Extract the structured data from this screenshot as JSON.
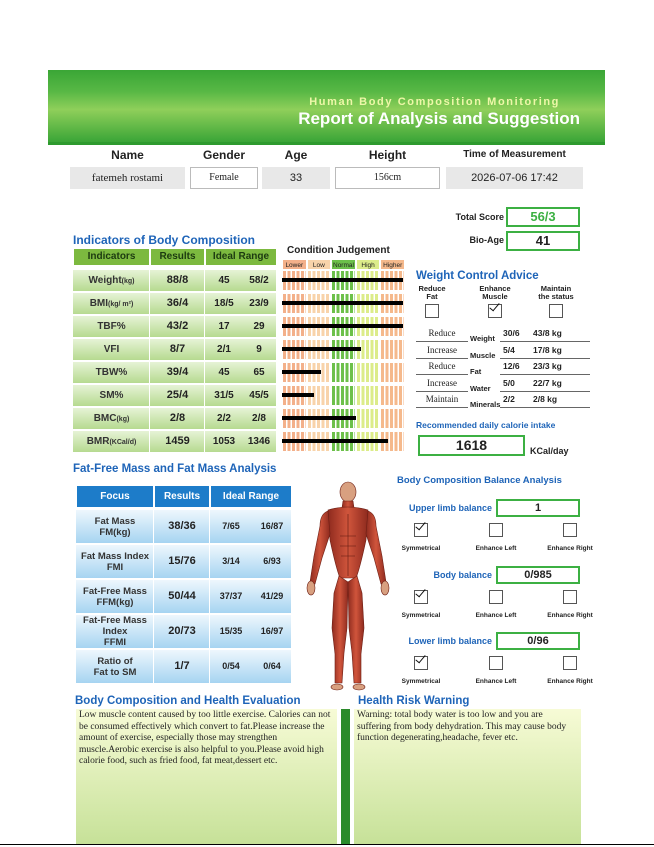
{
  "header": {
    "subtitle": "Human Body Composition Monitoring",
    "title": "Report of Analysis and Suggestion"
  },
  "info": {
    "columns": [
      "Name",
      "Gender",
      "Age",
      "Height",
      "Time of Measurement"
    ],
    "values": [
      "fatemeh rostami",
      "Female",
      "33",
      "156cm",
      "2026-07-06  17:42"
    ]
  },
  "score": {
    "total_label": "Total Score",
    "total": "56/3",
    "bio_age_label": "Bio-Age",
    "bio_age": "41"
  },
  "indicators": {
    "title": "Indicators of Body Composition",
    "columns": [
      "Indicators",
      "Results",
      "Ideal Range"
    ],
    "rows": [
      {
        "name": "Weight",
        "unit": "(kg)",
        "result": "88/8",
        "min": "45",
        "max": "58/2"
      },
      {
        "name": "BMI",
        "unit": "(kg/ m²)",
        "result": "36/4",
        "min": "18/5",
        "max": "23/9"
      },
      {
        "name": "TBF%",
        "result": "43/2",
        "min": "17",
        "max": "29"
      },
      {
        "name": "VFI",
        "result": "8/7",
        "min": "2/1",
        "max": "9"
      },
      {
        "name": "TBW%",
        "result": "39/4",
        "min": "45",
        "max": "65"
      },
      {
        "name": "SM%",
        "result": "25/4",
        "min": "31/5",
        "max": "45/5"
      },
      {
        "name": "BMC",
        "unit": "(kg)",
        "result": "2/8",
        "min": "2/2",
        "max": "2/8"
      },
      {
        "name": "BMR",
        "unit": "(KCal/d)",
        "result": "1459",
        "min": "1053",
        "max": "1346"
      }
    ],
    "condition": {
      "title": "Condition Judgement",
      "levels": [
        "Lower",
        "Low",
        "Normal",
        "High",
        "Higher"
      ],
      "bars": [
        4.9,
        4.9,
        4.9,
        3.2,
        1.6,
        1.3,
        3.0,
        4.3
      ]
    }
  },
  "weight_control": {
    "title": "Weight Control Advice",
    "options": [
      {
        "label": [
          "Reduce",
          "Fat"
        ],
        "checked": false
      },
      {
        "label": [
          "Enhance",
          "Muscle"
        ],
        "checked": true
      },
      {
        "label": [
          "Maintain",
          "the status"
        ],
        "checked": false
      }
    ],
    "rows": [
      {
        "action": "Reduce",
        "item": "Weight",
        "change": "30/6",
        "target": "43/8 kg"
      },
      {
        "action": "Increase",
        "item": "Muscle",
        "change": "5/4",
        "target": "17/8 kg"
      },
      {
        "action": "Reduce",
        "item": "Fat",
        "change": "12/6",
        "target": "23/3 kg"
      },
      {
        "action": "Increase",
        "item": "Water",
        "change": "5/0",
        "target": "22/7 kg"
      },
      {
        "action": "Maintain",
        "item": "Minerals",
        "change": "2/2",
        "target": "2/8 kg"
      }
    ],
    "calorie_label": "Recommended daily calorie intake",
    "calorie": "1618",
    "calorie_unit": "KCal/day"
  },
  "fat_analysis": {
    "title": "Fat-Free Mass and Fat Mass Analysis",
    "columns": [
      "Focus",
      "Results",
      "Ideal Range"
    ],
    "rows": [
      {
        "focus": [
          "Fat Mass",
          "FM(kg)"
        ],
        "result": "38/36",
        "min": "7/65",
        "max": "16/87"
      },
      {
        "focus": [
          "Fat Mass Index",
          "FMI"
        ],
        "result": "15/76",
        "min": "3/14",
        "max": "6/93"
      },
      {
        "focus": [
          "Fat-Free Mass",
          "FFM(kg)"
        ],
        "result": "50/44",
        "min": "37/37",
        "max": "41/29"
      },
      {
        "focus": [
          "Fat-Free Mass",
          "Index",
          "FFMI"
        ],
        "result": "20/73",
        "min": "15/35",
        "max": "16/97"
      },
      {
        "focus": [
          "Ratio of",
          "Fat to SM"
        ],
        "result": "1/7",
        "min": "0/54",
        "max": "0/64"
      }
    ]
  },
  "balance": {
    "title": "Body Composition Balance Analysis",
    "sections": [
      {
        "label": "Upper limb balance",
        "value": "1",
        "options": [
          {
            "label": "Symmetrical",
            "checked": true
          },
          {
            "label": "Enhance Left",
            "checked": false
          },
          {
            "label": "Enhance Right",
            "checked": false
          }
        ]
      },
      {
        "label": "Body balance",
        "value": "0/985",
        "options": [
          {
            "label": "Symmetrical",
            "checked": true
          },
          {
            "label": "Enhance Left",
            "checked": false
          },
          {
            "label": "Enhance Right",
            "checked": false
          }
        ]
      },
      {
        "label": "Lower limb balance",
        "value": "0/96",
        "options": [
          {
            "label": "Symmetrical",
            "checked": true
          },
          {
            "label": "Enhance Left",
            "checked": false
          },
          {
            "label": "Enhance Right",
            "checked": false
          }
        ]
      }
    ]
  },
  "evaluation": {
    "title": "Body Composition and Health Evaluation",
    "text": "Low muscle content caused by too little exercise. Calories can not be consumed effectively which convert to fat.Please increase the amount of exercise, especially those may strengthen muscle.Aerobic exercise is also helpful to you.Please avoid high calorie food, such as fried food, fat meat,dessert etc."
  },
  "warning": {
    "title": "Health Risk Warning",
    "text": "Warning: total body water is too low and you are suffering from body dehydration. This may cause body function degenerating,headache, fever etc."
  }
}
